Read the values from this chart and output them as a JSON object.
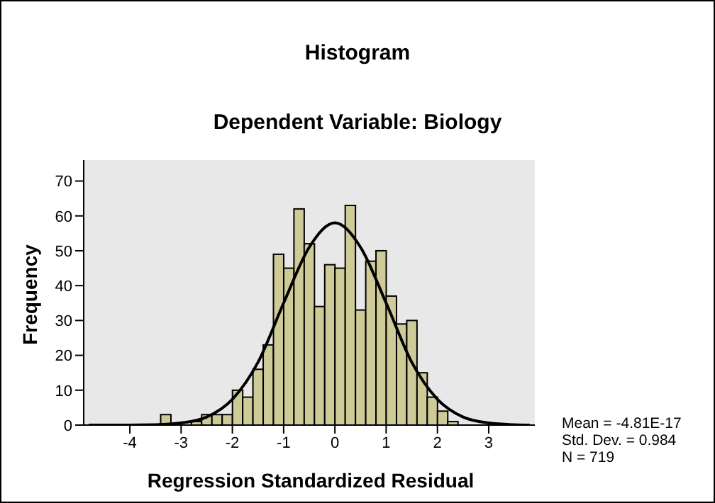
{
  "chart_data": {
    "type": "histogram",
    "title": "Histogram",
    "subtitle": "Dependent Variable: Biology",
    "xlabel": "Regression Standardized Residual",
    "ylabel": "Frequency",
    "bins": [
      -3.4,
      -3.2,
      -3.0,
      -2.8,
      -2.6,
      -2.4,
      -2.2,
      -2.0,
      -1.8,
      -1.6,
      -1.4,
      -1.2,
      -1.0,
      -0.8,
      -0.6,
      -0.4,
      -0.2,
      0,
      0.2,
      0.4,
      0.6,
      0.8,
      1.0,
      1.2,
      1.4,
      1.6,
      1.8,
      2.0,
      2.2,
      2.4
    ],
    "values": [
      3,
      0,
      0,
      1,
      3,
      3,
      3,
      10,
      8,
      16,
      23,
      49,
      45,
      62,
      52,
      34,
      46,
      45,
      63,
      33,
      47,
      50,
      37,
      29,
      30,
      15,
      8,
      4,
      1
    ],
    "color": "#cfcb99",
    "series": [
      {
        "type": "line",
        "color": "#000000",
        "x": [
          -4.8,
          -4,
          -3.5,
          -3,
          -2.5,
          -2,
          -1.5,
          -1,
          -0.5,
          0,
          0.5,
          1,
          1.5,
          2,
          2.5,
          3,
          3.5,
          3.8
        ],
        "values": [
          0,
          0,
          0.1,
          0.6,
          2.3,
          7.4,
          18,
          35,
          51,
          58,
          51,
          35,
          18,
          7.4,
          2.3,
          0.6,
          0.1,
          0
        ]
      }
    ],
    "xlim": [
      -4.9,
      3.9
    ],
    "xticks": [
      -4,
      -3,
      -2,
      -1,
      0,
      1,
      2,
      3
    ],
    "ylim": [
      0,
      76
    ],
    "yticks": [
      0,
      10,
      20,
      30,
      40,
      50,
      60,
      70
    ],
    "grid": false,
    "legend": false,
    "annotations": [
      "Mean = -4.81E-17",
      "Std. Dev. = 0.984",
      "N = 719"
    ]
  }
}
